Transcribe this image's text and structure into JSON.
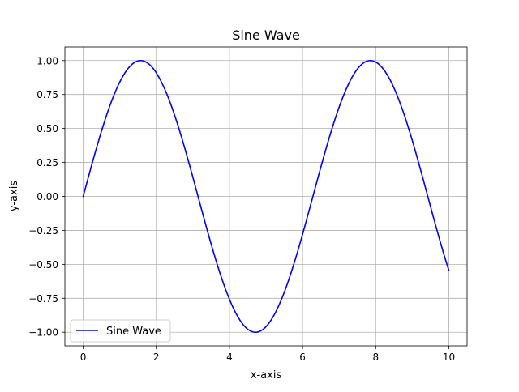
{
  "chart_data": {
    "type": "line",
    "title": "Sine Wave",
    "xlabel": "x-axis",
    "ylabel": "y-axis",
    "xlim": [
      -0.5,
      10.5
    ],
    "ylim": [
      -1.1,
      1.1
    ],
    "grid": true,
    "legend_position": "lower-left",
    "x_ticks": [
      0,
      2,
      4,
      6,
      8,
      10
    ],
    "x_tick_labels": [
      "0",
      "2",
      "4",
      "6",
      "8",
      "10"
    ],
    "y_ticks": [
      -1.0,
      -0.75,
      -0.5,
      -0.25,
      0.0,
      0.25,
      0.5,
      0.75,
      1.0
    ],
    "y_tick_labels": [
      "−1.00",
      "−0.75",
      "−0.50",
      "−0.25",
      "0.00",
      "0.25",
      "0.50",
      "0.75",
      "1.00"
    ],
    "series": [
      {
        "name": "Sine Wave",
        "color": "#0000ff",
        "x_range": [
          0,
          10
        ],
        "function": "sin(x)"
      }
    ]
  }
}
